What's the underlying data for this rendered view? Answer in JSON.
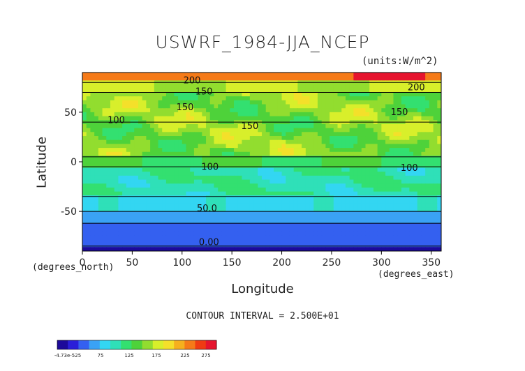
{
  "title": "USWRF_1984-JJA_NCEP",
  "units": "(units:W/m^2)",
  "contour_interval": "CONTOUR INTERVAL = 2.500E+01",
  "colorbar": {
    "tick_labels": [
      "-4.73e-525",
      "75",
      "125",
      "175",
      "225",
      "275"
    ],
    "colors": [
      "#1d0a9a",
      "#2a1fd8",
      "#3460f0",
      "#3aa2f5",
      "#33d6f2",
      "#2fe0b8",
      "#33e070",
      "#4ed23a",
      "#92dd2f",
      "#d8ef2b",
      "#f4e02a",
      "#f5b01e",
      "#f57a18",
      "#ef3b12",
      "#e6142e"
    ]
  },
  "chart_data": {
    "type": "heatmap",
    "title": "USWRF_1984-JJA_NCEP",
    "xlabel": "Longitude",
    "ylabel": "Latitude",
    "xunit_label": "(degrees_east)",
    "yunit_label": "(degrees_north)",
    "xlim": [
      0,
      360
    ],
    "ylim": [
      -90,
      90
    ],
    "xticks": [
      0,
      50,
      100,
      150,
      200,
      250,
      300,
      350
    ],
    "yticks": [
      -50,
      0,
      50
    ],
    "contour_labels": [
      {
        "text": "200",
        "lon": 110,
        "lat": 79
      },
      {
        "text": "150",
        "lon": 122,
        "lat": 68
      },
      {
        "text": "150",
        "lon": 103,
        "lat": 52
      },
      {
        "text": "100",
        "lon": 34,
        "lat": 39
      },
      {
        "text": "150",
        "lon": 168,
        "lat": 33
      },
      {
        "text": "150",
        "lon": 318,
        "lat": 47
      },
      {
        "text": "100",
        "lon": 128,
        "lat": -8
      },
      {
        "text": "100",
        "lon": 328,
        "lat": -9
      },
      {
        "text": "50.0",
        "lon": 125,
        "lat": -50
      },
      {
        "text": "0.00",
        "lon": 127,
        "lat": -84
      },
      {
        "text": "200",
        "lon": 335,
        "lat": 72
      }
    ],
    "bands": [
      {
        "lat_from": 90,
        "lat_to": 80,
        "value": 240
      },
      {
        "lat_from": 80,
        "lat_to": 70,
        "value": 170
      },
      {
        "lat_from": 70,
        "lat_to": 40,
        "value": 150
      },
      {
        "lat_from": 40,
        "lat_to": 5,
        "value": 160
      },
      {
        "lat_from": 5,
        "lat_to": -5,
        "value": 125
      },
      {
        "lat_from": -5,
        "lat_to": -35,
        "value": 100
      },
      {
        "lat_from": -35,
        "lat_to": -50,
        "value": 80
      },
      {
        "lat_from": -50,
        "lat_to": -62,
        "value": 55
      },
      {
        "lat_from": -62,
        "lat_to": -85,
        "value": 25
      },
      {
        "lat_from": -85,
        "lat_to": -90,
        "value": 0
      }
    ]
  }
}
